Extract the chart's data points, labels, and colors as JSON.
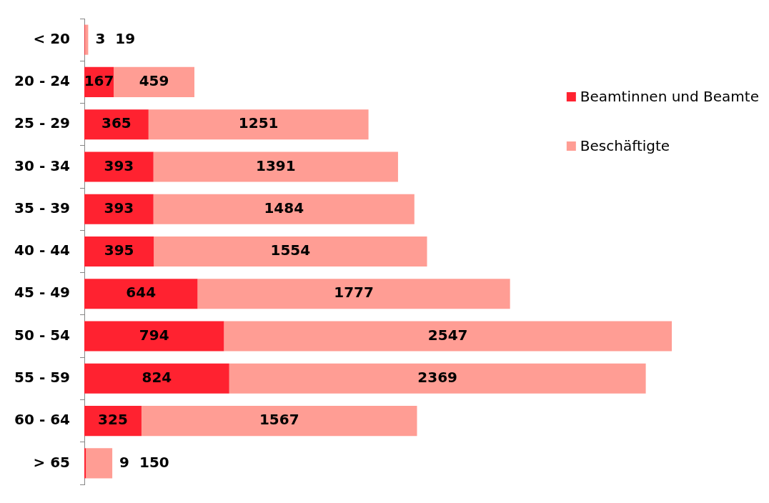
{
  "chart_data": {
    "type": "bar",
    "orientation": "horizontal",
    "stacked": true,
    "categories": [
      "< 20",
      "20 - 24",
      "25 - 29",
      "30 - 34",
      "35 - 39",
      "40 - 44",
      "45 - 49",
      "50 - 54",
      "55 - 59",
      "60 - 64",
      "> 65"
    ],
    "series": [
      {
        "name": "Beamtinnen und Beamte",
        "color": "#ff2230",
        "values": [
          3,
          167,
          365,
          393,
          393,
          395,
          644,
          794,
          824,
          325,
          9
        ]
      },
      {
        "name": "Beschäftigte",
        "color": "#ff9d94",
        "values": [
          19,
          459,
          1251,
          1391,
          1484,
          1554,
          1777,
          2547,
          2369,
          1567,
          150
        ]
      }
    ],
    "data_labels": true,
    "legend": "top right",
    "tick_labels": "y"
  }
}
